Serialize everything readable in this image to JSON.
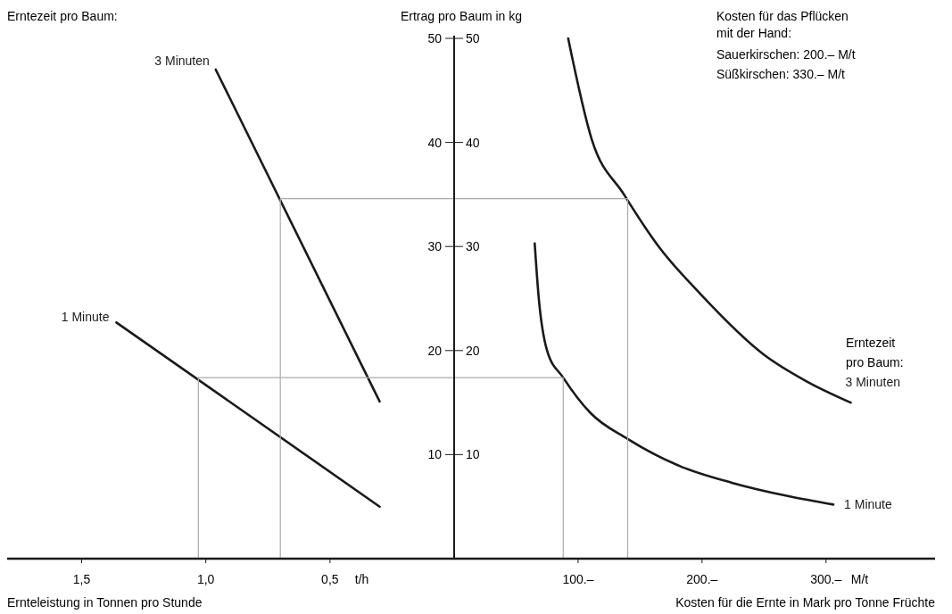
{
  "chart_data": [
    {
      "type": "line",
      "ylabel": "Ertrag pro Baum in kg",
      "xlabel": "Ernteleistung in Tonnen pro Stunde",
      "xlim": [
        1.8,
        0
      ],
      "xticks": [
        {
          "value": 1.5,
          "label": "1,5"
        },
        {
          "value": 1,
          "label": "1,0"
        },
        {
          "value": 0.5,
          "label": "0,5"
        }
      ],
      "ylim": [
        0,
        50
      ],
      "yticks": [
        10,
        20,
        30,
        40,
        50
      ],
      "annotations": [
        "t/h",
        "Erntezeit pro Baum:"
      ],
      "series": [
        {
          "name": "3 Minuten",
          "color": "#1a1a1a",
          "x": [
            0.96,
            0.3
          ],
          "values": [
            47,
            15.1
          ]
        },
        {
          "name": "1 Minute",
          "color": "#1a1a1a",
          "x": [
            1.36,
            0.3
          ],
          "values": [
            22.7,
            5
          ]
        },
        {
          "color": "#aaaaaa",
          "x": [
            0.7,
            0.7,
            0
          ],
          "values": [
            0,
            34.6,
            34.6
          ]
        },
        {
          "color": "#aaaaaa",
          "x": [
            1.03,
            1.03,
            0
          ],
          "values": [
            0,
            17.4,
            17.4
          ]
        }
      ]
    },
    {
      "type": "line",
      "xlabel": "Kosten für die Ernte in Mark pro Tonne Früchte",
      "xlim": [
        0,
        388
      ],
      "xticks": [
        {
          "value": 100,
          "label": "100.–"
        },
        {
          "value": 200,
          "label": "200.–"
        },
        {
          "value": 300,
          "label": "300.–"
        }
      ],
      "ylim": [
        0,
        50
      ],
      "yticks": [
        10,
        20,
        30,
        40,
        50
      ],
      "annotations": [
        "M/t",
        "Kosten für das Pflücken mit der Hand:",
        "Sauerkirschen: 200.– M/t",
        "Süßkirschen: 330.– M/t",
        "Erntezeit pro Baum:"
      ],
      "series": [
        {
          "name": "3 Minuten",
          "color": "#1a1a1a",
          "x": [
            92,
            111,
            137,
            165,
            199,
            250,
            285,
            320
          ],
          "values": [
            50,
            40.3,
            35,
            30,
            25.4,
            19.6,
            17,
            15
          ]
        },
        {
          "name": "1 Minute",
          "color": "#1a1a1a",
          "x": [
            65,
            68,
            75,
            88,
            110,
            140,
            180,
            224,
            270,
            306
          ],
          "values": [
            30.3,
            25.4,
            20,
            17.4,
            14,
            11.5,
            9,
            7.3,
            6,
            5.2
          ]
        },
        {
          "color": "#aaaaaa",
          "x": [
            0,
            140,
            140
          ],
          "values": [
            34.6,
            34.6,
            0
          ]
        },
        {
          "color": "#aaaaaa",
          "x": [
            88,
            88,
            0
          ],
          "values": [
            0,
            17.4,
            17.4
          ]
        }
      ]
    }
  ]
}
